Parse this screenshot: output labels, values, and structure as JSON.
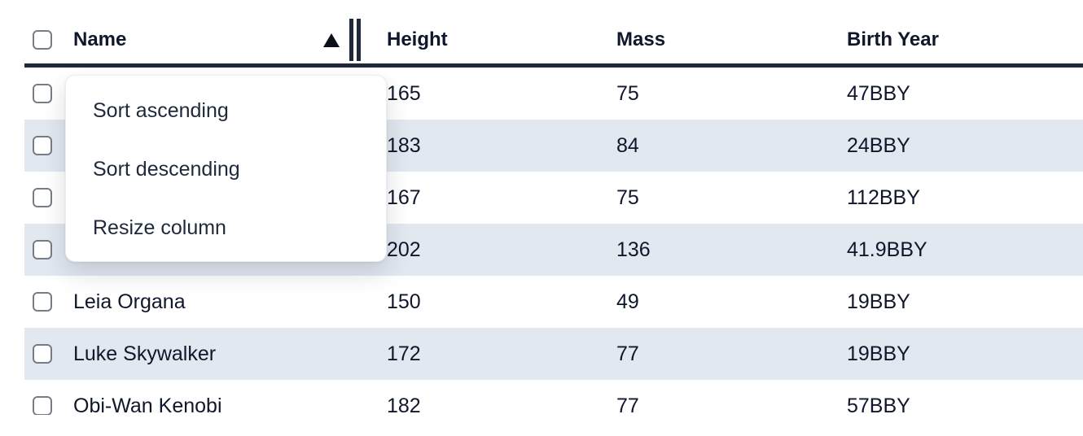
{
  "colors": {
    "stripe": "#e2e8f0",
    "header_border": "#1e293b",
    "text": "#0f172a",
    "menu_text": "#1e293b",
    "checkbox_border": "#777d88"
  },
  "table": {
    "columns": [
      {
        "label": "Name",
        "sorted": "ascending",
        "sort_icon": "triangle-up",
        "resize_icon": "double-bar"
      },
      {
        "label": "Height"
      },
      {
        "label": "Mass"
      },
      {
        "label": "Birth Year"
      }
    ],
    "rows": [
      {
        "name": "",
        "height": "165",
        "mass": "75",
        "birth_year": "47BBY"
      },
      {
        "name": "",
        "height": "183",
        "mass": "84",
        "birth_year": "24BBY"
      },
      {
        "name": "",
        "height": "167",
        "mass": "75",
        "birth_year": "112BBY"
      },
      {
        "name": "",
        "height": "202",
        "mass": "136",
        "birth_year": "41.9BBY"
      },
      {
        "name": "Leia Organa",
        "height": "150",
        "mass": "49",
        "birth_year": "19BBY"
      },
      {
        "name": "Luke Skywalker",
        "height": "172",
        "mass": "77",
        "birth_year": "19BBY"
      },
      {
        "name": "Obi-Wan Kenobi",
        "height": "182",
        "mass": "77",
        "birth_year": "57BBY"
      }
    ]
  },
  "menu": {
    "items": [
      {
        "label": "Sort ascending"
      },
      {
        "label": "Sort descending"
      },
      {
        "label": "Resize column"
      }
    ]
  }
}
